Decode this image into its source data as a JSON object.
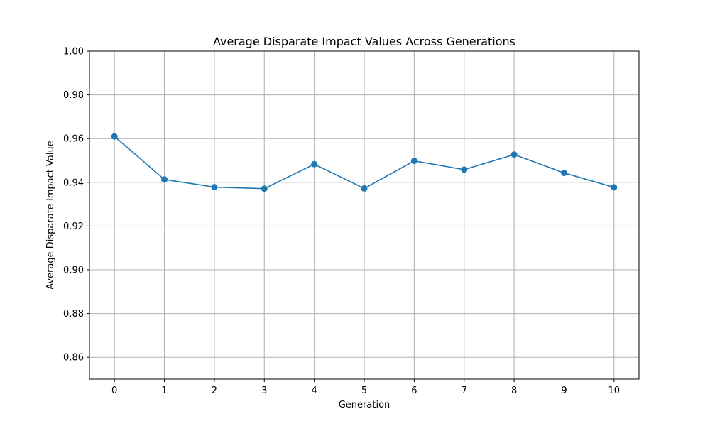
{
  "chart_data": {
    "type": "line",
    "title": "Average Disparate Impact Values Across Generations",
    "xlabel": "Generation",
    "ylabel": "Average Disparate Impact Value",
    "x": [
      0,
      1,
      2,
      3,
      4,
      5,
      6,
      7,
      8,
      9,
      10
    ],
    "x_tick_labels": [
      "0",
      "1",
      "2",
      "3",
      "4",
      "5",
      "6",
      "7",
      "8",
      "9",
      "10"
    ],
    "y_ticks": [
      0.86,
      0.88,
      0.9,
      0.92,
      0.94,
      0.96,
      0.98,
      1.0
    ],
    "y_tick_labels": [
      "0.86",
      "0.88",
      "0.90",
      "0.92",
      "0.94",
      "0.96",
      "0.98",
      "1.00"
    ],
    "ylim": [
      0.85,
      1.0
    ],
    "xlim": [
      -0.5,
      10.5
    ],
    "grid": true,
    "series": [
      {
        "values": [
          0.961,
          0.9413,
          0.9378,
          0.9371,
          0.9483,
          0.9372,
          0.9498,
          0.9458,
          0.9527,
          0.9443,
          0.9377
        ],
        "color": "#1f77b4",
        "marker": "circle"
      }
    ]
  }
}
